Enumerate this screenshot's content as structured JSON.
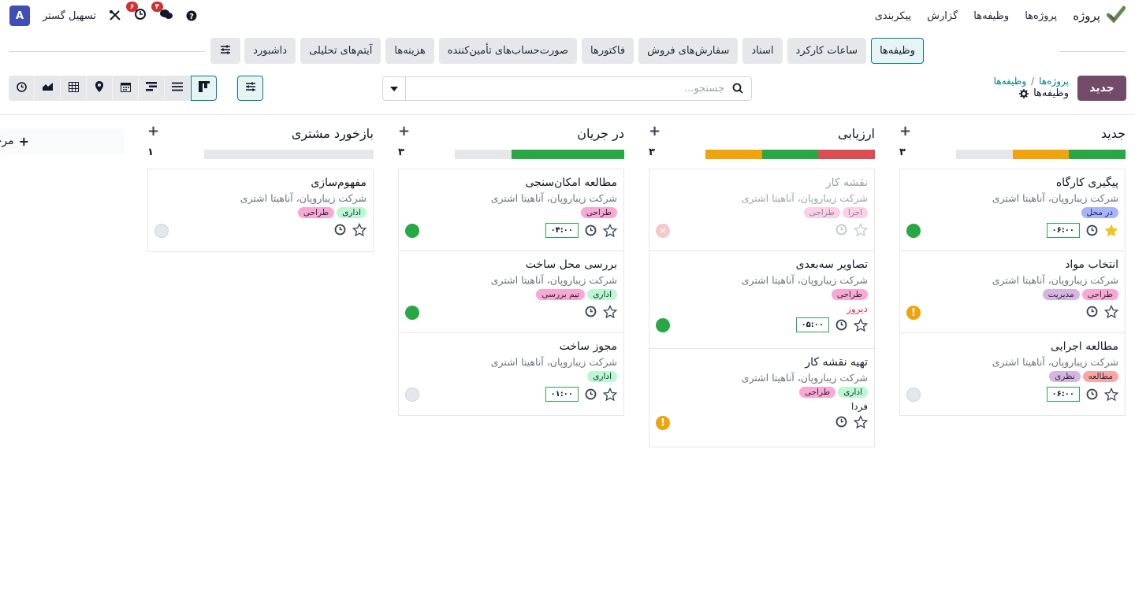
{
  "navbar": {
    "brand": "پروژه",
    "menu": [
      "پروژه‌ها",
      "وظیفه‌ها",
      "گزارش",
      "پیکربندی"
    ],
    "company": "تسهیل گستر",
    "avatar_letter": "A",
    "messages_badge": "۴",
    "activity_badge": "۶"
  },
  "tabs": [
    "وظیفه‌ها",
    "ساعات کارکرد",
    "اسناد",
    "سفارش‌های فروش",
    "فاکتورها",
    "صورت‌حساب‌های تأمین‌کننده",
    "هزینه‌ها",
    "آیتم‌های تحلیلی",
    "داشبورد"
  ],
  "control": {
    "new_button": "جدید",
    "breadcrumb_parent": "پروژه‌ها",
    "breadcrumb_child": "وظیفه‌ها",
    "breadcrumb_current": "وظیفه‌ها",
    "search_placeholder": "جستجو..."
  },
  "colors": {
    "primary": "#714b67",
    "accent": "#017e84",
    "green": "#28a745",
    "orange": "#f0a30a",
    "red": "#dc4c54"
  },
  "columns": [
    {
      "title": "جدید",
      "count": "۳",
      "progress": [
        {
          "state": "green",
          "ratio": 0.333
        },
        {
          "state": "orange",
          "ratio": 0.333
        },
        {
          "state": "grey",
          "ratio": 0.334
        }
      ],
      "cards": [
        {
          "title": "پیگیری کارگاه",
          "customer": "شرکت زیباروپان، آناهیتا اشتری",
          "tags": [
            {
              "label": "در محل",
              "color": "#a5b4fc"
            }
          ],
          "hours": "۰۶:۰۰",
          "starred": true,
          "state": "green"
        },
        {
          "title": "انتخاب مواد",
          "customer": "شرکت زیباروپان، آناهیتا اشتری",
          "tags": [
            {
              "label": "طراحی",
              "color": "#f9a8d4"
            },
            {
              "label": "مدیریت",
              "color": "#d8b4e2"
            }
          ],
          "state": "warn"
        },
        {
          "title": "مطالعه اجرایی",
          "customer": "شرکت زیباروپان، آناهیتا اشتری",
          "tags": [
            {
              "label": "مطالعه",
              "color": "#fca5a5"
            },
            {
              "label": "نظری",
              "color": "#d8b4e2"
            }
          ],
          "hours": "۰۶:۰۰",
          "state": "grey"
        }
      ]
    },
    {
      "title": "ارزیابی",
      "count": "۳",
      "progress": [
        {
          "state": "red",
          "ratio": 0.333
        },
        {
          "state": "green",
          "ratio": 0.333
        },
        {
          "state": "orange",
          "ratio": 0.334
        }
      ],
      "cards": [
        {
          "title": "نقشه کار",
          "customer": "شرکت زیباروپان، آناهیتا اشتری",
          "tags": [
            {
              "label": "اجرا",
              "color": "#f9a8d4"
            },
            {
              "label": "طراحی",
              "color": "#f9a8d4"
            }
          ],
          "state": "blocked",
          "faded": true
        },
        {
          "title": "تصاویر سه‌بعدی",
          "customer": "شرکت زیباروپان، آناهیتا اشتری",
          "tags": [
            {
              "label": "طراحی",
              "color": "#f9a8d4"
            }
          ],
          "deadline": "دیروز",
          "deadline_style": "red",
          "hours": "۰۵:۰۰",
          "state": "green"
        },
        {
          "title": "تهیه نقشه کار",
          "customer": "شرکت زیباروپان، آناهیتا اشتری",
          "tags": [
            {
              "label": "اداری",
              "color": "#bbf7d0"
            },
            {
              "label": "طراحی",
              "color": "#f9a8d4"
            }
          ],
          "deadline": "فردا",
          "deadline_style": "dark",
          "state": "warn"
        }
      ]
    },
    {
      "title": "در جریان",
      "count": "۳",
      "progress": [
        {
          "state": "green",
          "ratio": 0.667
        },
        {
          "state": "grey",
          "ratio": 0.333
        }
      ],
      "cards": [
        {
          "title": "مطالعه امکان‌سنجی",
          "customer": "شرکت زیباروپان، آناهیتا اشتری",
          "tags": [
            {
              "label": "طراحی",
              "color": "#f9a8d4"
            }
          ],
          "hours": "۰۴:۰۰",
          "state": "green"
        },
        {
          "title": "بررسی محل ساخت",
          "customer": "شرکت زیباروپان، آناهیتا اشتری",
          "tags": [
            {
              "label": "اداری",
              "color": "#bbf7d0"
            },
            {
              "label": "تیم بررسی",
              "color": "#f9a8d4"
            }
          ],
          "state": "green"
        },
        {
          "title": "مجوز ساخت",
          "customer": "شرکت زیباروپان، آناهیتا اشتری",
          "tags": [
            {
              "label": "اداری",
              "color": "#bbf7d0"
            }
          ],
          "hours": "۰۱:۰۰",
          "state": "grey"
        }
      ]
    },
    {
      "title": "بازخورد مشتری",
      "count": "۱",
      "progress": [
        {
          "state": "grey",
          "ratio": 1
        }
      ],
      "cards": [
        {
          "title": "مفهوم‌سازی",
          "customer": "شرکت زیباروپان، آناهیتا اشتری",
          "tags": [
            {
              "label": "اداری",
              "color": "#bbf7d0"
            },
            {
              "label": "طراحی",
              "color": "#f9a8d4"
            }
          ],
          "state": "grey"
        }
      ]
    }
  ],
  "add_column_label": "مرحله"
}
